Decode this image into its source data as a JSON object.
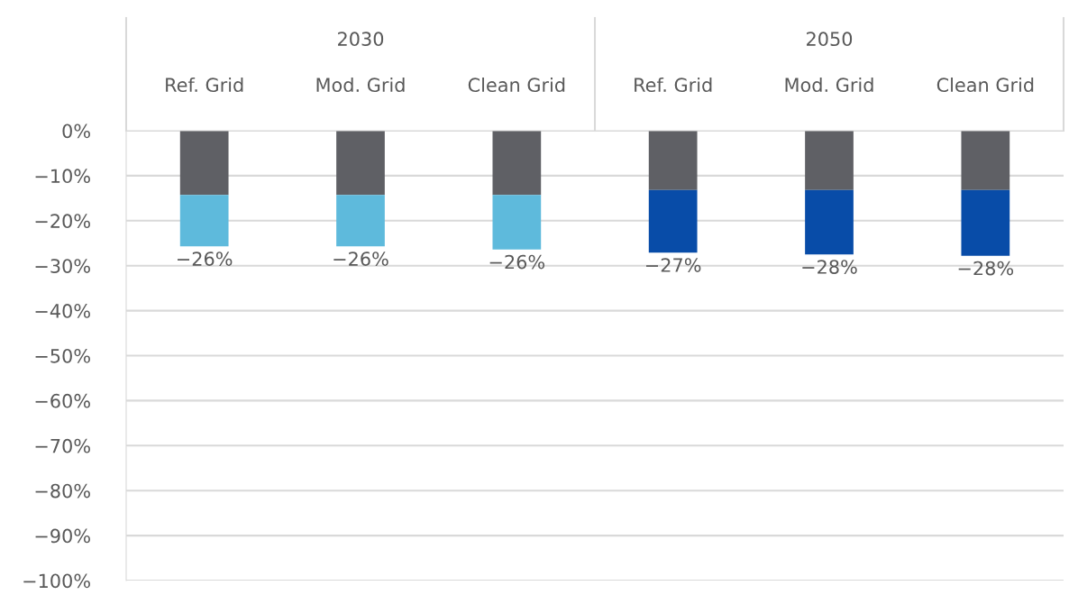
{
  "chart_data": {
    "type": "bar",
    "stacked": true,
    "categories": [
      "Ref. Grid",
      "Mod. Grid",
      "Clean Grid",
      "Ref. Grid",
      "Mod. Grid",
      "Clean Grid"
    ],
    "annotations": [
      "2030",
      "2050"
    ],
    "series": [
      {
        "color": "#5f6065",
        "values": [
          -14.3,
          -14.3,
          -14.3,
          -13.2,
          -13.2,
          -13.2
        ]
      },
      {
        "colors": [
          "#5ebadc",
          "#5ebadc",
          "#5ebadc",
          "#084ca8",
          "#084ca8",
          "#084ca8"
        ],
        "values": [
          -11.4,
          -11.4,
          -12.1,
          -13.9,
          -14.3,
          -14.6
        ]
      }
    ],
    "totals": [
      "−26%",
      "−26%",
      "−26%",
      "−27%",
      "−28%",
      "−28%"
    ],
    "ylim": [
      -100,
      0
    ],
    "yticks": [
      {
        "value": 0,
        "label": "0%"
      },
      {
        "value": -10,
        "label": "−10%"
      },
      {
        "value": -20,
        "label": "−20%"
      },
      {
        "value": -30,
        "label": "−30%"
      },
      {
        "value": -40,
        "label": "−40%"
      },
      {
        "value": -50,
        "label": "−50%"
      },
      {
        "value": -60,
        "label": "−60%"
      },
      {
        "value": -70,
        "label": "−70%"
      },
      {
        "value": -80,
        "label": "−80%"
      },
      {
        "value": -90,
        "label": "−90%"
      },
      {
        "value": -100,
        "label": "−100%"
      }
    ],
    "grid": "y",
    "legend": false
  }
}
